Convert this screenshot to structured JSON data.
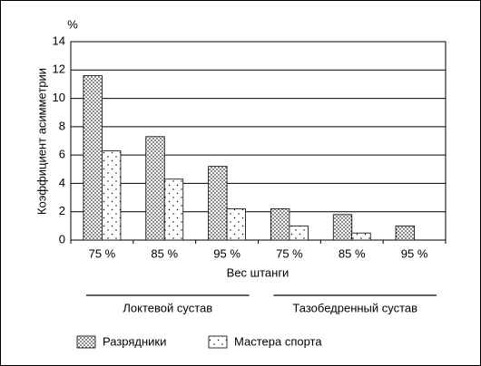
{
  "chart_data": {
    "type": "bar",
    "y_label": "Коэффициент асимметрии",
    "y_unit": "%",
    "x_label": "Вес штанги",
    "categories": [
      "75 %",
      "85 %",
      "95 %",
      "75 %",
      "85 %",
      "95 %"
    ],
    "x_groups": [
      "Локтевой сустав",
      "Тазобедренный сустав"
    ],
    "series": [
      {
        "name": "Разрядники",
        "color": "#000000",
        "pattern": "dense-dots",
        "values": [
          11.6,
          7.3,
          5.2,
          2.2,
          1.8,
          1.0
        ]
      },
      {
        "name": "Мастера спорта",
        "color": "#000000",
        "pattern": "sparse-dots",
        "values": [
          6.3,
          4.3,
          2.2,
          1.0,
          0.5,
          null
        ]
      }
    ],
    "ylim": [
      0,
      14
    ],
    "yticks": [
      0,
      2,
      4,
      6,
      8,
      10,
      12,
      14
    ],
    "grid": true
  }
}
